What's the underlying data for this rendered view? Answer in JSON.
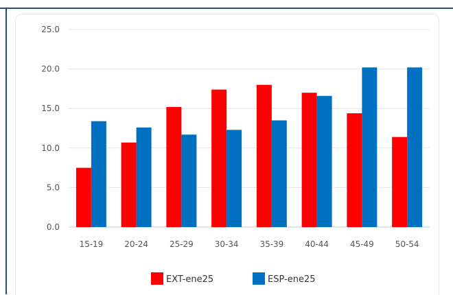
{
  "chart_data": {
    "type": "bar",
    "categories": [
      "15-19",
      "20-24",
      "25-29",
      "30-34",
      "35-39",
      "40-44",
      "45-49",
      "50-54"
    ],
    "series": [
      {
        "name": "EXT-ene25",
        "color": "#ff0000",
        "values": [
          7.5,
          10.7,
          15.2,
          17.4,
          18.0,
          17.0,
          14.4,
          11.4
        ]
      },
      {
        "name": "ESP-ene25",
        "color": "#0070c0",
        "values": [
          13.4,
          12.6,
          11.7,
          12.3,
          13.5,
          16.6,
          20.2,
          20.2
        ]
      }
    ],
    "ylim": [
      0,
      25
    ],
    "yticks": [
      "0.0",
      "5.0",
      "10.0",
      "15.0",
      "20.0",
      "25.0"
    ],
    "grid": true,
    "legend_position": "bottom"
  }
}
